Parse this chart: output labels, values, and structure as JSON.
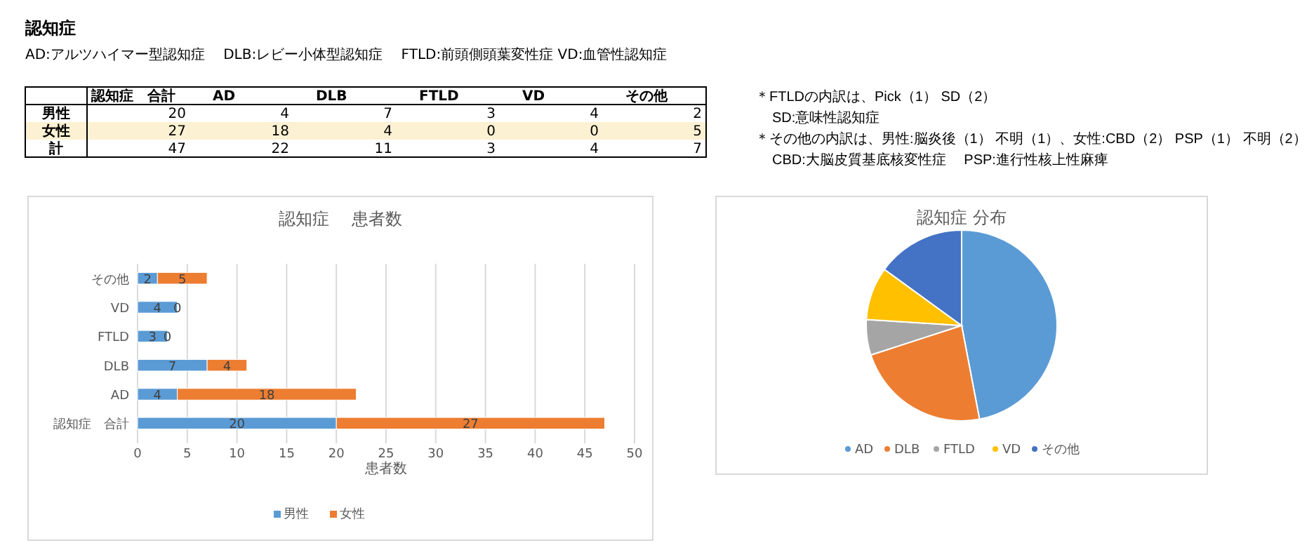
{
  "chart_data": [
    {
      "type": "other",
      "title": "認知症",
      "subtitle": "AD:アルツハイマー型認知症　 DLB:レビー小体型認知症　 FTLD:前頭側頭葉変性症  VD:血管性認知症",
      "categories": [
        "認知症　合計",
        "AD",
        "DLB",
        "FTLD",
        "VD",
        "その他"
      ],
      "y_categories": [
        "男性",
        "女性",
        "計"
      ],
      "cell_labels": [
        [
          "20",
          "4",
          "7",
          "3",
          "4",
          "2"
        ],
        [
          "27",
          "18",
          "4",
          "0",
          "0",
          "5"
        ],
        [
          "47",
          "22",
          "11",
          "3",
          "4",
          "7"
        ]
      ],
      "annotations": [
        "＊FTLDの内訳は、Pick（1） SD（2）",
        "SD:意味性認知症",
        "＊その他の内訳は、男性:脳炎後（1） 不明（1）、女性:CBD（2） PSP（1） 不明（2）",
        "CBD:大脳皮質基底核変性症　 PSP:進行性核上性麻痺"
      ]
    },
    {
      "type": "bar",
      "title": "認知症　 患者数",
      "orientation": "horizontal",
      "stacked": true,
      "categories": [
        "その他",
        "VD",
        "FTLD",
        "DLB",
        "AD",
        "認知症　合計"
      ],
      "series": [
        {
          "name": "男性",
          "color": "#5b9bd5",
          "values": [
            2,
            4,
            3,
            7,
            4,
            20
          ]
        },
        {
          "name": "女性",
          "color": "#ed7d31",
          "values": [
            5,
            0,
            0,
            4,
            18,
            27
          ]
        }
      ],
      "xlim": [
        0,
        50
      ],
      "xticks": [
        0,
        5,
        10,
        15,
        20,
        25,
        30,
        35,
        40,
        45,
        50
      ],
      "xlabel": "患者数",
      "grid": "x",
      "legend": "bottom",
      "data_labels": true
    },
    {
      "type": "pie",
      "title": "認知症  分布",
      "categories": [
        "AD",
        "DLB",
        "FTLD",
        "VD",
        "その他"
      ],
      "values": [
        47,
        23,
        6,
        9,
        15
      ],
      "colors": [
        "#5b9bd5",
        "#ed7d31",
        "#a5a5a5",
        "#ffc000",
        "#4472c4"
      ],
      "legend": "bottom"
    }
  ]
}
